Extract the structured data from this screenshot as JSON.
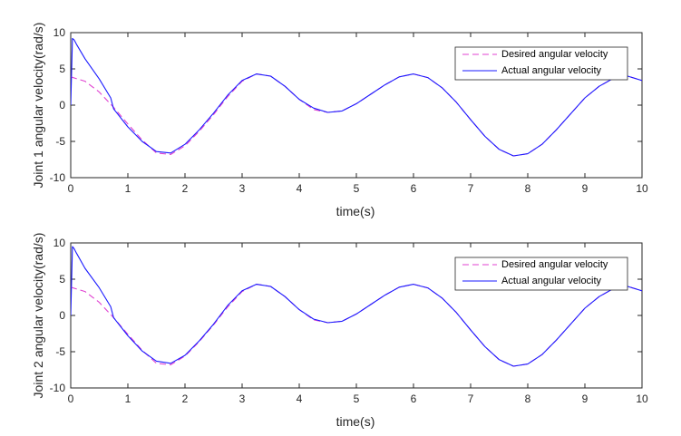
{
  "chart_data": [
    {
      "type": "line",
      "title": "",
      "xlabel": "time(s)",
      "ylabel": "Joint 1 angular velocity(rad/s)",
      "xlim": [
        0,
        10
      ],
      "ylim": [
        -10,
        10
      ],
      "xticks": [
        0,
        1,
        2,
        3,
        4,
        5,
        6,
        7,
        8,
        9,
        10
      ],
      "yticks": [
        -10,
        -5,
        0,
        5,
        10
      ],
      "grid": false,
      "legend_position": "top-right",
      "series": [
        {
          "name": "Desired angular velocity",
          "color": "#e040d0",
          "dash": "dashed",
          "x": [
            0,
            0.25,
            0.5,
            0.75,
            1.0,
            1.25,
            1.5,
            1.75,
            2.0,
            2.25,
            2.5,
            2.75,
            3.0,
            3.25,
            3.5,
            3.75,
            4.0,
            4.25,
            4.5,
            4.75,
            5.0,
            5.25,
            5.5,
            5.75,
            6.0,
            6.25,
            6.5,
            6.75,
            7.0,
            7.25,
            7.5,
            7.75,
            8.0,
            8.25,
            8.5,
            8.75,
            9.0,
            9.25,
            9.5,
            9.75,
            10.0
          ],
          "values": [
            3.9,
            3.3,
            1.8,
            -0.3,
            -2.6,
            -4.8,
            -6.6,
            -6.8,
            -5.6,
            -3.6,
            -1.3,
            1.2,
            3.3,
            4.3,
            4.0,
            2.6,
            0.8,
            -0.6,
            -1.0,
            -0.8,
            0.2,
            1.5,
            2.8,
            3.9,
            4.3,
            3.8,
            2.4,
            0.4,
            -2.0,
            -4.3,
            -6.1,
            -7.0,
            -6.7,
            -5.4,
            -3.4,
            -1.2,
            1.0,
            2.6,
            3.7,
            4.0,
            3.4
          ]
        },
        {
          "name": "Actual angular velocity",
          "color": "#1a1aff",
          "dash": "solid",
          "x": [
            0,
            0.03,
            0.06,
            0.1,
            0.25,
            0.5,
            0.7,
            0.75,
            1.0,
            1.25,
            1.5,
            1.75,
            2.0,
            2.25,
            2.5,
            2.75,
            3.0,
            3.25,
            3.5,
            3.75,
            4.0,
            4.25,
            4.5,
            4.75,
            5.0,
            5.25,
            5.5,
            5.75,
            6.0,
            6.25,
            6.5,
            6.75,
            7.0,
            7.25,
            7.5,
            7.75,
            8.0,
            8.25,
            8.5,
            8.75,
            9.0,
            9.25,
            9.5,
            9.75,
            10.0
          ],
          "values": [
            0,
            9.2,
            9.0,
            8.4,
            6.4,
            3.6,
            1.0,
            -0.5,
            -3.0,
            -5.0,
            -6.4,
            -6.6,
            -5.4,
            -3.4,
            -1.1,
            1.4,
            3.4,
            4.3,
            4.0,
            2.6,
            0.8,
            -0.4,
            -1.0,
            -0.8,
            0.2,
            1.5,
            2.8,
            3.9,
            4.3,
            3.8,
            2.4,
            0.4,
            -2.0,
            -4.3,
            -6.1,
            -7.0,
            -6.7,
            -5.4,
            -3.4,
            -1.2,
            1.0,
            2.6,
            3.7,
            4.0,
            3.4
          ]
        }
      ]
    },
    {
      "type": "line",
      "title": "",
      "xlabel": "time(s)",
      "ylabel": "Joint 2 angular velocity(rad/s)",
      "xlim": [
        0,
        10
      ],
      "ylim": [
        -10,
        10
      ],
      "xticks": [
        0,
        1,
        2,
        3,
        4,
        5,
        6,
        7,
        8,
        9,
        10
      ],
      "yticks": [
        -10,
        -5,
        0,
        5,
        10
      ],
      "grid": false,
      "legend_position": "top-right",
      "series": [
        {
          "name": "Desired angular velocity",
          "color": "#e040d0",
          "dash": "dashed",
          "x": [
            0,
            0.25,
            0.5,
            0.75,
            1.0,
            1.25,
            1.5,
            1.75,
            2.0,
            2.25,
            2.5,
            2.75,
            3.0,
            3.25,
            3.5,
            3.75,
            4.0,
            4.25,
            4.5,
            4.75,
            5.0,
            5.25,
            5.5,
            5.75,
            6.0,
            6.25,
            6.5,
            6.75,
            7.0,
            7.25,
            7.5,
            7.75,
            8.0,
            8.25,
            8.5,
            8.75,
            9.0,
            9.25,
            9.5,
            9.75,
            10.0
          ],
          "values": [
            3.9,
            3.3,
            1.8,
            -0.3,
            -2.6,
            -4.8,
            -6.6,
            -6.8,
            -5.6,
            -3.6,
            -1.3,
            1.2,
            3.3,
            4.3,
            4.0,
            2.6,
            0.8,
            -0.6,
            -1.0,
            -0.8,
            0.2,
            1.5,
            2.8,
            3.9,
            4.3,
            3.8,
            2.4,
            0.4,
            -2.0,
            -4.3,
            -6.1,
            -7.0,
            -6.7,
            -5.4,
            -3.4,
            -1.2,
            1.0,
            2.6,
            3.7,
            4.0,
            3.4
          ]
        },
        {
          "name": "Actual angular velocity",
          "color": "#1a1aff",
          "dash": "solid",
          "x": [
            0,
            0.03,
            0.06,
            0.1,
            0.25,
            0.5,
            0.7,
            0.75,
            1.0,
            1.25,
            1.5,
            1.75,
            2.0,
            2.25,
            2.5,
            2.75,
            3.0,
            3.25,
            3.5,
            3.75,
            4.0,
            4.25,
            4.5,
            4.75,
            5.0,
            5.25,
            5.5,
            5.75,
            6.0,
            6.25,
            6.5,
            6.75,
            7.0,
            7.25,
            7.5,
            7.75,
            8.0,
            8.25,
            8.5,
            8.75,
            9.0,
            9.25,
            9.5,
            9.75,
            10.0
          ],
          "values": [
            0,
            9.5,
            9.2,
            8.6,
            6.5,
            3.8,
            1.2,
            -0.3,
            -2.8,
            -4.9,
            -6.3,
            -6.6,
            -5.5,
            -3.5,
            -1.2,
            1.4,
            3.4,
            4.3,
            4.0,
            2.6,
            0.8,
            -0.5,
            -1.0,
            -0.8,
            0.2,
            1.5,
            2.8,
            3.9,
            4.3,
            3.8,
            2.4,
            0.4,
            -2.0,
            -4.3,
            -6.1,
            -7.0,
            -6.7,
            -5.4,
            -3.4,
            -1.2,
            1.0,
            2.6,
            3.7,
            4.0,
            3.4
          ]
        }
      ]
    }
  ]
}
